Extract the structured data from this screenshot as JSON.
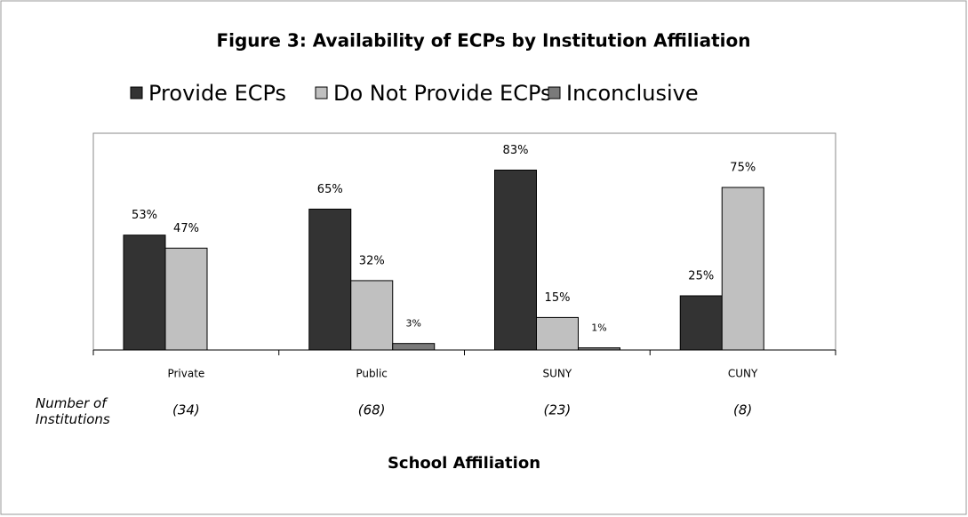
{
  "chart_data": {
    "type": "bar",
    "title": "Figure 3: Availability of ECPs by Institution Affiliation",
    "categories": [
      "Private",
      "Public",
      "SUNY",
      "CUNY"
    ],
    "series": [
      {
        "name": "Provide ECPs",
        "color": "#333333",
        "values": [
          53,
          65,
          83,
          25
        ],
        "value_labels": [
          "53%",
          "65%",
          "83%",
          "25%"
        ]
      },
      {
        "name": "Do Not Provide ECPs",
        "color": "#c0c0c0",
        "values": [
          47,
          32,
          15,
          75
        ],
        "value_labels": [
          "47%",
          "32%",
          "15%",
          "75%"
        ]
      },
      {
        "name": "Inconclusive",
        "color": "#7a7a7a",
        "values": [
          null,
          3,
          1,
          null
        ],
        "value_labels": [
          null,
          "3%",
          "1%",
          null
        ]
      }
    ],
    "ylim": [
      0,
      100
    ],
    "x_label": "School Affiliation",
    "institution_counts_label": "Number of Institutions",
    "institution_counts": [
      "(34)",
      "(68)",
      "(23)",
      "(8)"
    ]
  }
}
